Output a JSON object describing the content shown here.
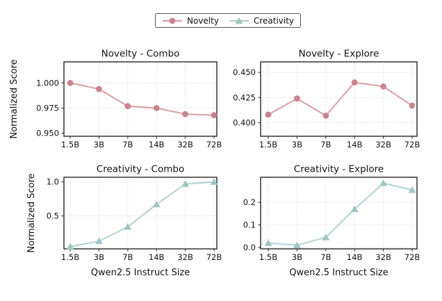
{
  "figure": {
    "background": "#ffffff"
  },
  "legend": {
    "items": [
      {
        "label": "Novelty",
        "marker": "circle",
        "color": "#c9838f"
      },
      {
        "label": "Creativity",
        "marker": "triangle",
        "color": "#9ec5c3"
      }
    ]
  },
  "chart_data": [
    {
      "type": "line",
      "id": "novelty-combo",
      "title": "Novelty - Combo",
      "series": [
        {
          "name": "Novelty",
          "values": [
            1.0,
            0.994,
            0.977,
            0.975,
            0.969,
            0.968
          ]
        }
      ],
      "categories": [
        "1.5B",
        "3B",
        "7B",
        "14B",
        "32B",
        "72B"
      ],
      "marker": "circle",
      "color": "#c9838f",
      "xlabel": "",
      "ylabel": "Normalized Score",
      "yticks": [
        0.95,
        0.975,
        1.0
      ],
      "ytick_labels": [
        "0.950",
        "0.975",
        "1.000"
      ],
      "ylim": [
        0.947,
        1.021
      ],
      "grid": "dotted",
      "legend_position": "figure-top"
    },
    {
      "type": "line",
      "id": "novelty-explore",
      "title": "Novelty - Explore",
      "series": [
        {
          "name": "Novelty",
          "values": [
            0.408,
            0.424,
            0.407,
            0.44,
            0.436,
            0.417
          ]
        }
      ],
      "categories": [
        "1.5B",
        "3B",
        "7B",
        "14B",
        "32B",
        "72B"
      ],
      "marker": "circle",
      "color": "#c9838f",
      "xlabel": "",
      "ylabel": "",
      "yticks": [
        0.4,
        0.425,
        0.45
      ],
      "ytick_labels": [
        "0.400",
        "0.425",
        "0.450"
      ],
      "ylim": [
        0.3865,
        0.4605
      ],
      "grid": "dotted",
      "legend_position": "figure-top"
    },
    {
      "type": "line",
      "id": "creativity-combo",
      "title": "Creativity - Combo",
      "series": [
        {
          "name": "Creativity",
          "values": [
            0.05,
            0.13,
            0.34,
            0.67,
            0.97,
            1.0
          ]
        }
      ],
      "categories": [
        "1.5B",
        "3B",
        "7B",
        "14B",
        "32B",
        "72B"
      ],
      "marker": "triangle",
      "color": "#9ec5c3",
      "xlabel": "Qwen2.5 Instruct Size",
      "ylabel": "Normalized Score",
      "yticks": [
        0.5,
        1.0
      ],
      "ytick_labels": [
        "0.5",
        "1.0"
      ],
      "ylim": [
        0.017,
        1.068
      ],
      "grid": "dotted",
      "legend_position": "figure-top"
    },
    {
      "type": "line",
      "id": "creativity-explore",
      "title": "Creativity - Explore",
      "series": [
        {
          "name": "Creativity",
          "values": [
            0.02,
            0.01,
            0.045,
            0.17,
            0.285,
            0.255
          ]
        }
      ],
      "categories": [
        "1.5B",
        "3B",
        "7B",
        "14B",
        "32B",
        "72B"
      ],
      "marker": "triangle",
      "color": "#9ec5c3",
      "xlabel": "Qwen2.5 Instruct Size",
      "ylabel": "",
      "yticks": [
        0.0,
        0.1,
        0.2
      ],
      "ytick_labels": [
        "0.0",
        "0.1",
        "0.2"
      ],
      "ylim": [
        -0.006,
        0.311
      ],
      "grid": "dotted",
      "legend_position": "figure-top"
    }
  ]
}
